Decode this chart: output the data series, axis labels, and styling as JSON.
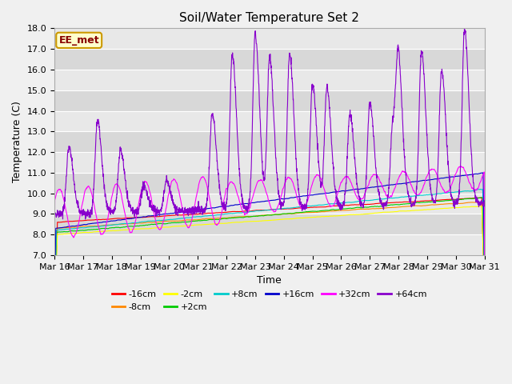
{
  "title": "Soil/Water Temperature Set 2",
  "xlabel": "Time",
  "ylabel": "Temperature (C)",
  "ylim": [
    7.0,
    18.0
  ],
  "yticks": [
    7.0,
    8.0,
    9.0,
    10.0,
    11.0,
    12.0,
    13.0,
    14.0,
    15.0,
    16.0,
    17.0,
    18.0
  ],
  "xtick_labels": [
    "Mar 16",
    "Mar 17",
    "Mar 18",
    "Mar 19",
    "Mar 20",
    "Mar 21",
    "Mar 22",
    "Mar 23",
    "Mar 24",
    "Mar 25",
    "Mar 26",
    "Mar 27",
    "Mar 28",
    "Mar 29",
    "Mar 30",
    "Mar 31"
  ],
  "annotation_text": "EE_met",
  "annotation_bg": "#ffffcc",
  "annotation_border": "#cc9900",
  "bg_color": "#f0f0f0",
  "series": [
    {
      "label": "-16cm",
      "color": "#ff0000"
    },
    {
      "label": "-8cm",
      "color": "#ff8800"
    },
    {
      "label": "-2cm",
      "color": "#ffff00"
    },
    {
      "label": "+2cm",
      "color": "#00cc00"
    },
    {
      "label": "+8cm",
      "color": "#00cccc"
    },
    {
      "label": "+16cm",
      "color": "#0000cc"
    },
    {
      "label": "+32cm",
      "color": "#ff00ff"
    },
    {
      "label": "+64cm",
      "color": "#8800cc"
    }
  ],
  "n_points": 2160,
  "days": 15
}
